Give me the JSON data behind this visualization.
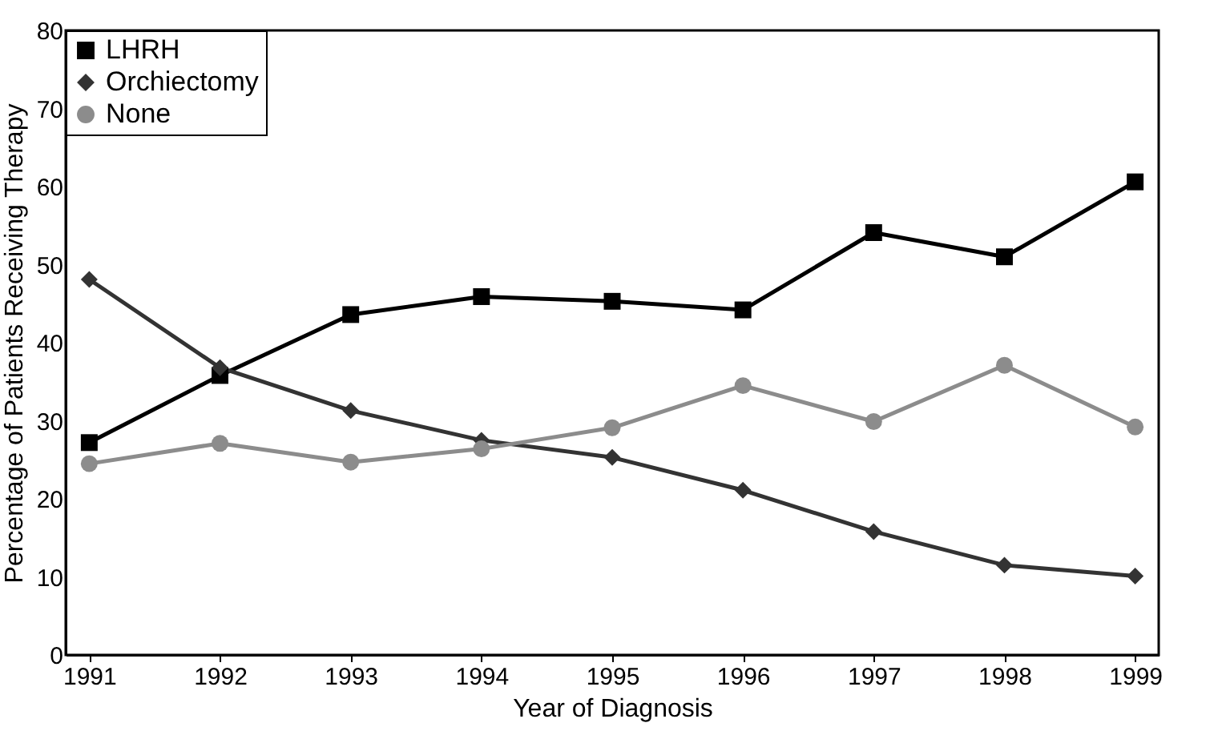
{
  "chart_data": {
    "type": "line",
    "xlabel": "Year of Diagnosis",
    "ylabel": "Percentage of Patients Receiving Therapy",
    "x": [
      1991,
      1992,
      1993,
      1994,
      1995,
      1996,
      1997,
      1998,
      1999
    ],
    "xlim": [
      1990.82,
      1999.18
    ],
    "xticks": [
      1991,
      1992,
      1993,
      1994,
      1995,
      1996,
      1997,
      1998,
      1999
    ],
    "ylim": [
      0,
      80
    ],
    "yticks": [
      0,
      10,
      20,
      30,
      40,
      50,
      60,
      70,
      80
    ],
    "grid": false,
    "legend": "top left",
    "line_style": "solid",
    "series": [
      {
        "name": "LHRH",
        "color": "#000000",
        "marker": "square",
        "values": [
          27.2,
          35.8,
          43.6,
          45.9,
          45.3,
          44.2,
          54.1,
          51.0,
          60.6
        ]
      },
      {
        "name": "Orchiectomy",
        "color": "#333333",
        "marker": "diamond",
        "values": [
          48.1,
          36.8,
          31.3,
          27.5,
          25.3,
          21.1,
          15.8,
          11.5,
          10.1
        ]
      },
      {
        "name": "None",
        "color": "#8c8c8c",
        "marker": "circle",
        "values": [
          24.5,
          27.1,
          24.7,
          26.4,
          29.1,
          34.5,
          29.9,
          37.1,
          29.2
        ]
      }
    ]
  }
}
